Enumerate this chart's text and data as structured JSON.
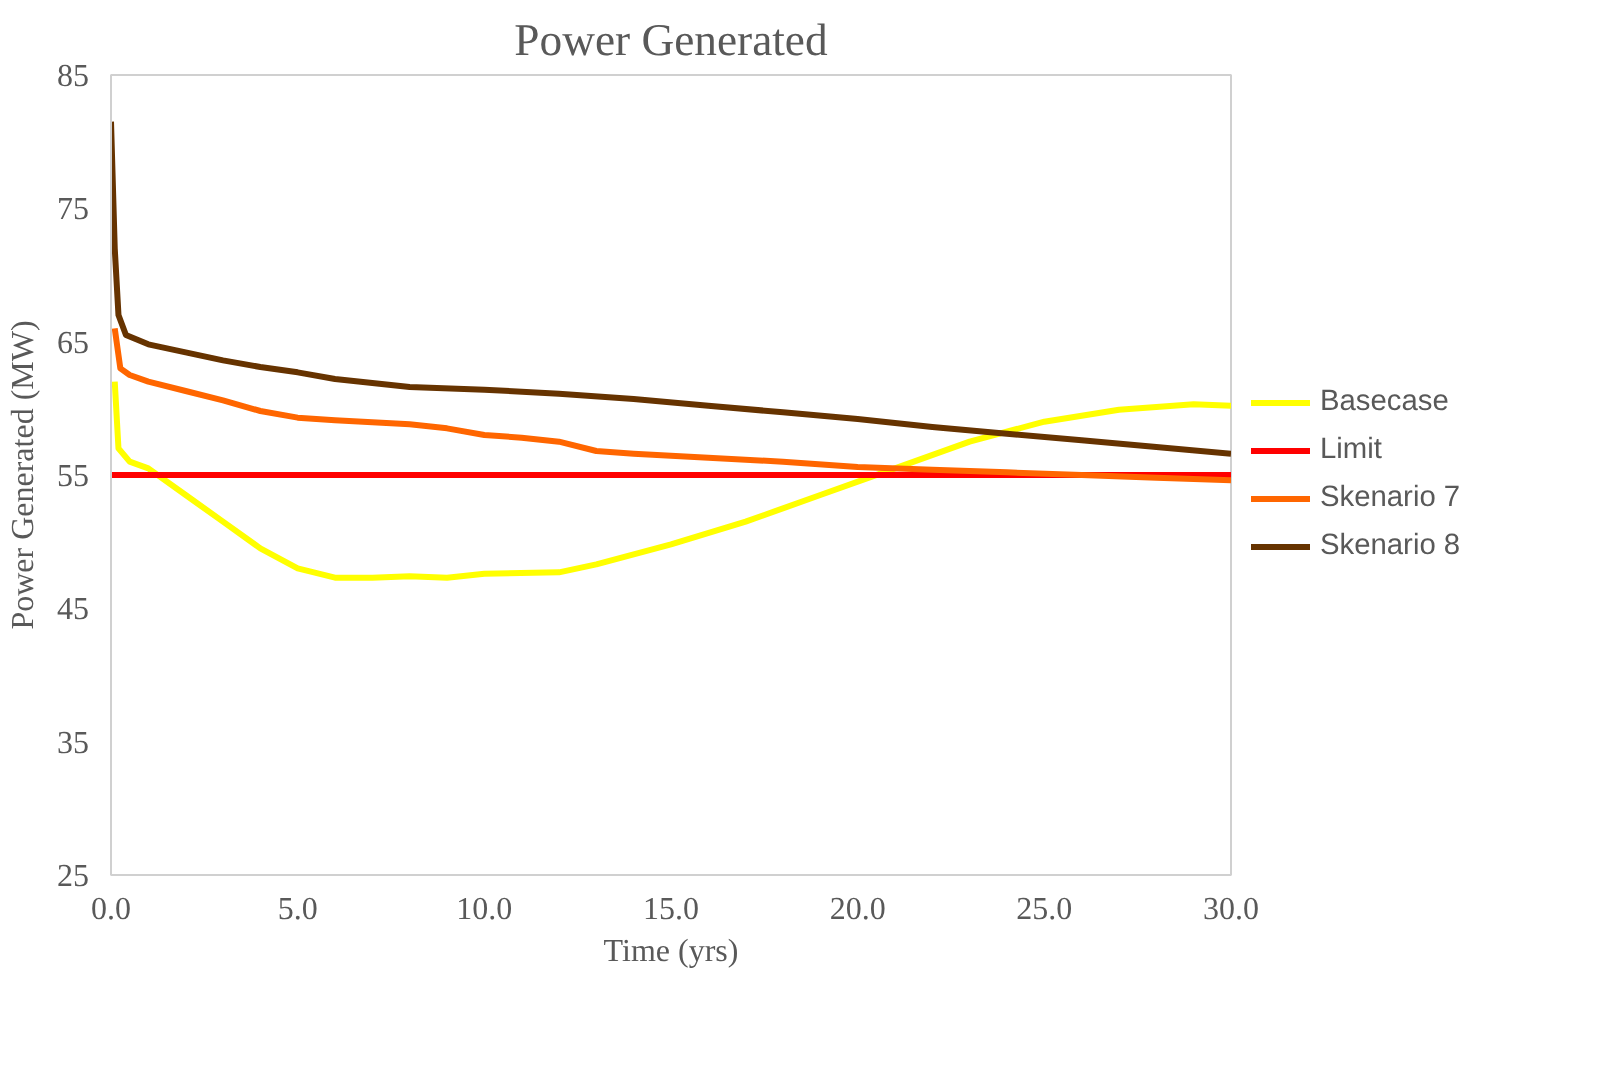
{
  "chart_data": {
    "type": "line",
    "title": "Power Generated",
    "xlabel": "Time (yrs)",
    "ylabel": "Power Generated (MW)",
    "xlim": [
      0,
      30
    ],
    "xticks": [
      {
        "value": 0,
        "label": "0.0"
      },
      {
        "value": 5,
        "label": "5.0"
      },
      {
        "value": 10,
        "label": "10.0"
      },
      {
        "value": 15,
        "label": "15.0"
      },
      {
        "value": 20,
        "label": "20.0"
      },
      {
        "value": 25,
        "label": "25.0"
      },
      {
        "value": 30,
        "label": "30.0"
      }
    ],
    "ylim": [
      25,
      85
    ],
    "yticks": [
      25,
      35,
      45,
      55,
      65,
      75,
      85
    ],
    "grid": false,
    "legend": "right",
    "marker": "none",
    "line_style": "solid",
    "series": [
      {
        "name": "Basecase",
        "color": "#ffff00",
        "x": [
          0.1,
          0.2,
          0.5,
          1,
          2,
          3,
          4,
          5,
          6,
          7,
          8,
          9,
          10,
          12,
          13,
          15,
          17,
          19,
          21,
          23,
          25,
          27,
          29,
          30
        ],
        "values": [
          62,
          57,
          56,
          55.5,
          53.5,
          51.5,
          49.5,
          48,
          47.3,
          47.3,
          47.4,
          47.3,
          47.6,
          47.7,
          48.3,
          49.8,
          51.5,
          53.5,
          55.5,
          57.5,
          59,
          59.9,
          60.3,
          60.2
        ]
      },
      {
        "name": "Limit",
        "color": "#ff0000",
        "x": [
          0,
          30
        ],
        "values": [
          55,
          55
        ]
      },
      {
        "name": "Skenario 7",
        "color": "#ff6600",
        "x": [
          0.1,
          0.25,
          0.5,
          1,
          2,
          3,
          4,
          5,
          6,
          8,
          9,
          10,
          11,
          12,
          13,
          14,
          16,
          18,
          20,
          22,
          24,
          26,
          28,
          30
        ],
        "values": [
          66,
          63,
          62.5,
          62,
          61.3,
          60.6,
          59.8,
          59.3,
          59.1,
          58.8,
          58.5,
          58,
          57.8,
          57.5,
          56.8,
          56.6,
          56.3,
          56,
          55.6,
          55.4,
          55.2,
          55,
          54.8,
          54.6
        ]
      },
      {
        "name": "Skenario 8",
        "color": "#663300",
        "x": [
          0,
          0.1,
          0.2,
          0.4,
          1,
          2,
          3,
          4,
          5,
          6,
          8,
          10,
          12,
          14,
          16,
          18,
          20,
          22,
          24,
          26,
          28,
          30
        ],
        "values": [
          81.5,
          72,
          67,
          65.5,
          64.8,
          64.2,
          63.6,
          63.1,
          62.7,
          62.2,
          61.6,
          61.4,
          61.1,
          60.7,
          60.2,
          59.7,
          59.2,
          58.6,
          58.1,
          57.6,
          57.1,
          56.6
        ]
      }
    ]
  }
}
